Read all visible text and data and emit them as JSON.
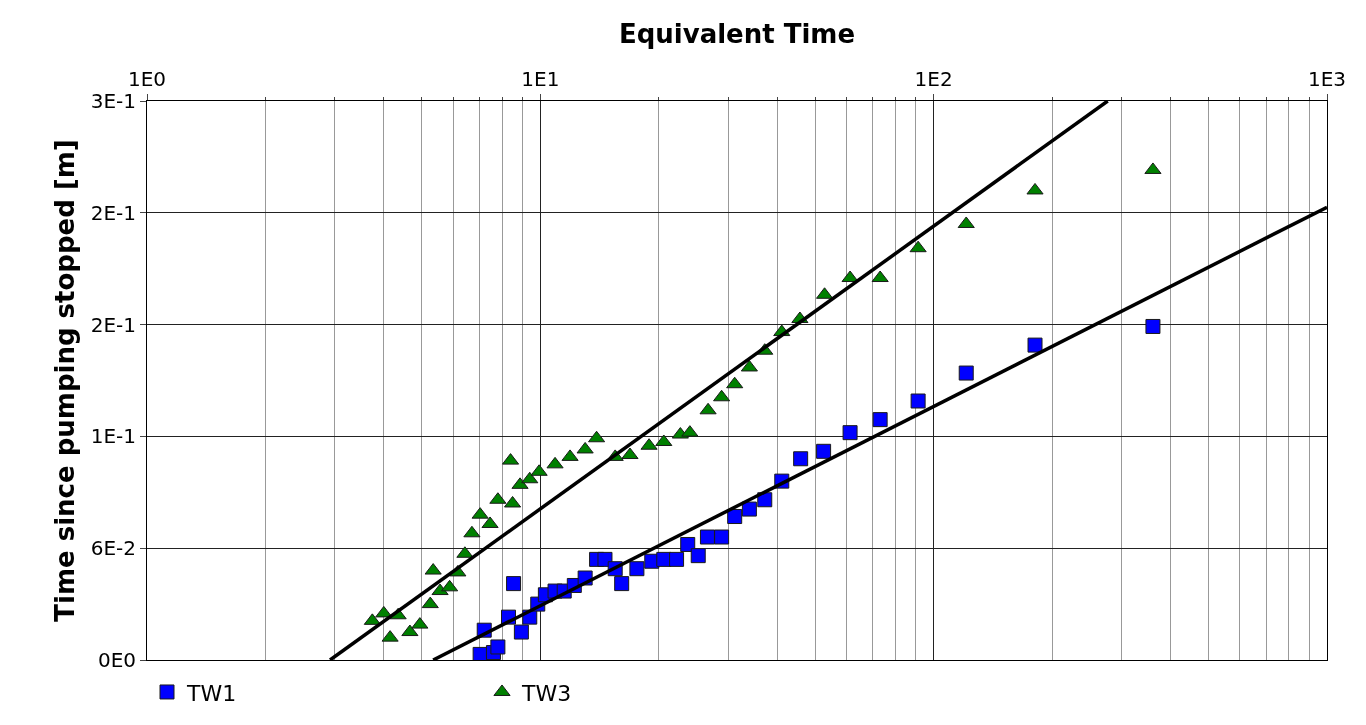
{
  "chart_data": {
    "type": "scatter",
    "xlabel": "Equivalent Time",
    "ylabel": "Time since pumping stopped [m]",
    "log": "x",
    "grid": true,
    "legend": "bottom",
    "xlim": [
      1,
      1000
    ],
    "xticks": [
      {
        "value": 1,
        "label": "1E0"
      },
      {
        "value": 10,
        "label": "1E1"
      },
      {
        "value": 100,
        "label": "1E2"
      },
      {
        "value": 1000,
        "label": "1E3"
      }
    ],
    "ylim": [
      0,
      0.3
    ],
    "yticks": [
      {
        "value": 0,
        "label": "0E0"
      },
      {
        "value": 0.06,
        "label": "6E-2"
      },
      {
        "value": 0.12,
        "label": "1E-1"
      },
      {
        "value": 0.18,
        "label": "2E-1"
      },
      {
        "value": 0.24,
        "label": "2E-1"
      },
      {
        "value": 0.3,
        "label": "3E-1"
      }
    ],
    "series": [
      {
        "name": "TW1",
        "color": "#0000ff",
        "marker": "square",
        "x": [
          7.03,
          7.2,
          7.6,
          7.8,
          8.06,
          8.3,
          8.55,
          8.95,
          9.4,
          9.85,
          10.3,
          10.9,
          11.5,
          12.2,
          13.0,
          13.9,
          14.6,
          15.5,
          16.1,
          17.6,
          19.2,
          20.6,
          22.2,
          23.7,
          25.2,
          26.6,
          28.9,
          31.2,
          34.0,
          37.2,
          41.1,
          45.9,
          52.5,
          61.3,
          73.1,
          91.3,
          121,
          181,
          361
        ],
        "values": [
          0.003,
          0.016,
          0.004,
          0.007,
          null,
          0.023,
          0.041,
          0.015,
          0.023,
          0.03,
          0.035,
          0.037,
          0.037,
          0.04,
          0.044,
          0.054,
          0.054,
          0.049,
          0.041,
          0.049,
          0.053,
          0.054,
          0.054,
          0.062,
          0.056,
          0.066,
          0.066,
          0.077,
          0.081,
          0.086,
          0.096,
          0.108,
          0.112,
          0.122,
          0.129,
          0.139,
          0.154,
          0.169,
          0.179
        ]
      },
      {
        "name": "TW3",
        "color": "#008000",
        "marker": "triangle",
        "x": [
          3.74,
          4.0,
          4.35,
          4.15,
          4.66,
          4.94,
          5.25,
          5.34,
          5.56,
          5.88,
          6.17,
          6.43,
          6.7,
          7.03,
          7.45,
          7.8,
          8.4,
          8.5,
          8.88,
          9.4,
          9.93,
          10.9,
          11.9,
          13.0,
          13.9,
          15.5,
          16.9,
          18.9,
          20.6,
          22.7,
          24.0,
          26.7,
          28.9,
          31.2,
          34.0,
          37.2,
          41.1,
          45.7,
          52.8,
          61.3,
          73.1,
          91.3,
          121,
          181,
          361
        ],
        "values": [
          0.021,
          0.025,
          0.024,
          0.012,
          0.015,
          0.019,
          0.03,
          0.048,
          0.037,
          0.039,
          0.047,
          0.057,
          0.068,
          0.078,
          0.073,
          0.086,
          0.107,
          0.084,
          0.094,
          0.097,
          0.101,
          0.105,
          0.109,
          0.113,
          0.119,
          0.109,
          0.11,
          0.115,
          0.117,
          0.121,
          0.122,
          0.134,
          0.141,
          0.148,
          0.157,
          0.166,
          0.176,
          0.183,
          0.196,
          0.205,
          0.205,
          0.221,
          0.234,
          0.252,
          0.263
        ]
      },
      {
        "type": "line",
        "color": "#000000",
        "x": [
          2.92,
          277
        ],
        "values": [
          0,
          0.3
        ]
      },
      {
        "type": "line",
        "color": "#000000",
        "x": [
          5.34,
          1000
        ],
        "values": [
          0,
          0.243
        ]
      }
    ]
  }
}
